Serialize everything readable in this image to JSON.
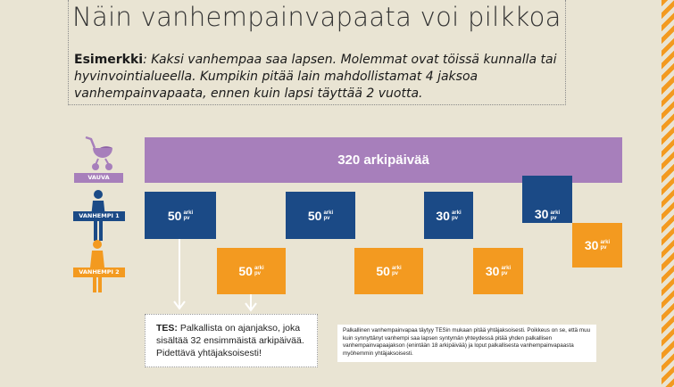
{
  "title": "Näin vanhempainvapaata voi pilkkoa",
  "intro": {
    "label": "Esimerkki",
    "text": ": Kaksi vanhempaa saa lapsen. Molemmat ovat töissä kunnalla tai hyvinvointialueella. Kumpikin pitää lain mahdollistamat 4 jaksoa vanhempainvapaata, ennen kuin lapsi täyttää 2 vuotta."
  },
  "rows": {
    "baby": "VAUVA",
    "parent1": "VANHEMPI 1",
    "parent2": "VANHEMPI 2"
  },
  "total_bar": "320 arkipäivää",
  "unit_top": "arki",
  "unit_bottom": "pv",
  "parent1_blocks": [
    "50",
    "50",
    "30",
    "30"
  ],
  "parent2_blocks": [
    "50",
    "50",
    "30",
    "30"
  ],
  "tes_note": {
    "label": "TES:",
    "text": " Palkallista on ajanjakso, joka sisältää 32 ensimmäistä arkipäivää. Pidettävä yhtäjaksoisesti!"
  },
  "side_note": "Palkallinen vanhempainvapaa täytyy TESin mukaan pitää yhtäjaksoisesti. Poikkeus on se, että muu kuin synnyttänyt vanhempi saa lapsen syntymän yhteydessä pitää yhden palkallisen vanhempainvapaajakson (enintään 18 arkipäivää) ja loput palkallisesta vanhempainvapaasta myöhemmin yhtäjaksoisesti.",
  "colors": {
    "baby": "#a77fbb",
    "parent1": "#1b4a86",
    "parent2": "#f39a20",
    "background": "#e9e4d3"
  },
  "icons": [
    "stroller-icon",
    "person-icon",
    "person-icon"
  ]
}
